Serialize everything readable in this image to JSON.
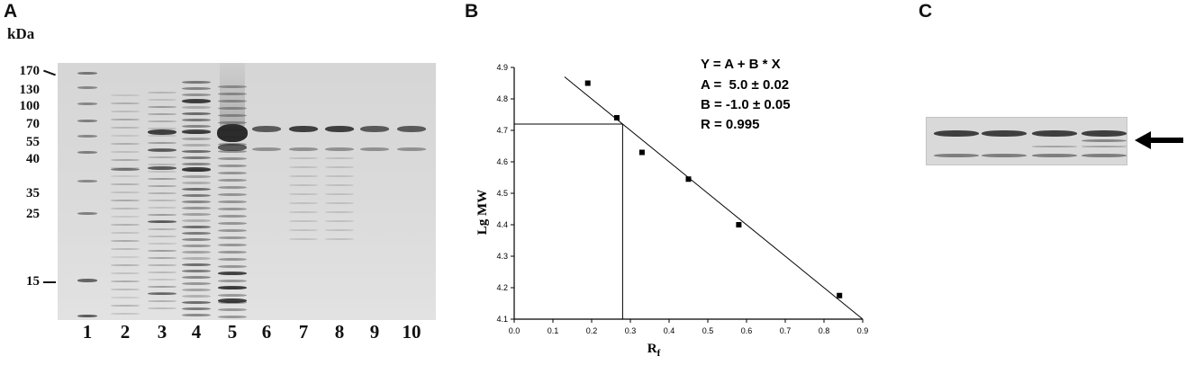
{
  "panels": {
    "a": {
      "letter": "A",
      "unit": "kDa",
      "markers": [
        "170",
        "130",
        "100",
        "70",
        "55",
        "40",
        "35",
        "25",
        "15"
      ],
      "lanes": [
        "1",
        "2",
        "3",
        "4",
        "5",
        "6",
        "7",
        "8",
        "9",
        "10"
      ]
    },
    "b": {
      "letter": "B",
      "equation": [
        "Y = A + B * X",
        "A =  5.0 ± 0.02",
        "B = -1.0 ± 0.05",
        "R = 0.995"
      ]
    },
    "c": {
      "letter": "C"
    }
  },
  "chart_data": {
    "type": "scatter",
    "title": "",
    "xlabel": "R",
    "xlabel_sub": "f",
    "ylabel": "Lg MW",
    "xlim": [
      0.0,
      0.9
    ],
    "ylim": [
      4.1,
      4.9
    ],
    "x_ticks": [
      "0.0",
      "0.1",
      "0.2",
      "0.3",
      "0.4",
      "0.5",
      "0.6",
      "0.7",
      "0.8",
      "0.9"
    ],
    "y_ticks": [
      "4.1",
      "4.2",
      "4.3",
      "4.4",
      "4.5",
      "4.6",
      "4.7",
      "4.8",
      "4.9"
    ],
    "points": [
      {
        "x": 0.19,
        "y": 4.85
      },
      {
        "x": 0.265,
        "y": 4.74
      },
      {
        "x": 0.33,
        "y": 4.63
      },
      {
        "x": 0.45,
        "y": 4.545
      },
      {
        "x": 0.58,
        "y": 4.4
      },
      {
        "x": 0.84,
        "y": 4.175
      }
    ],
    "fit_line": {
      "intercept": 5.0,
      "slope": -1.0,
      "x_range": [
        0.13,
        0.9
      ]
    },
    "readout": {
      "x": 0.28,
      "y": 4.72
    },
    "grid": false
  }
}
